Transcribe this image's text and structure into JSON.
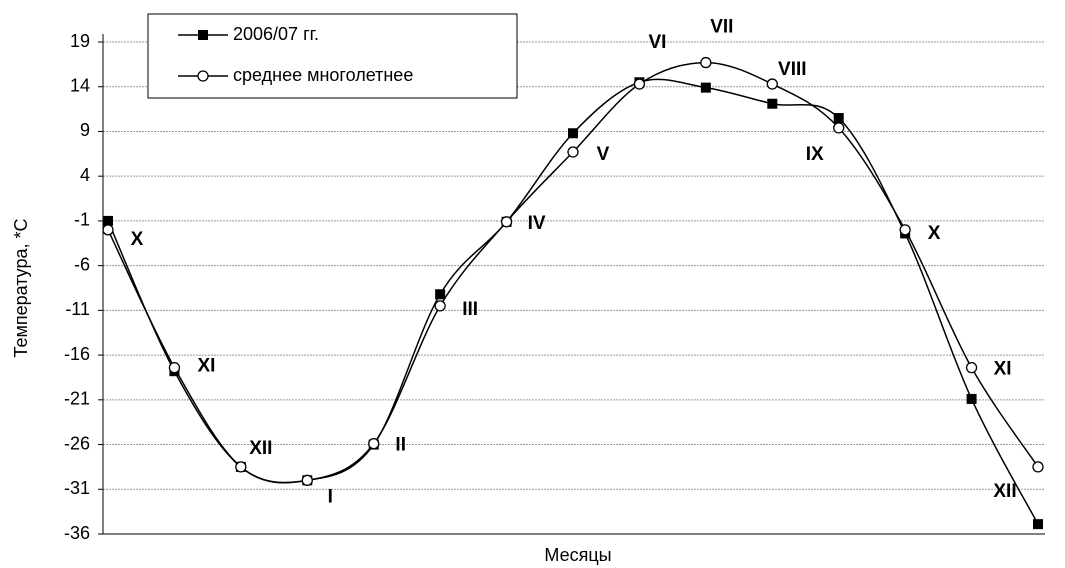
{
  "chart_data": {
    "type": "line",
    "y_label": "Температура, *С",
    "x_label": "Месяцы",
    "categories": [
      "X",
      "XI",
      "XII",
      "I",
      "II",
      "III",
      "IV",
      "V",
      "VI",
      "VII",
      "VIII",
      "IX",
      "X",
      "XI",
      "XII"
    ],
    "series": [
      {
        "name": "2006/07 гг.",
        "color": "#000000",
        "marker": "square",
        "values": [
          -1.0,
          -17.8,
          -28.5,
          -30.0,
          -26.0,
          -9.2,
          -1.1,
          8.8,
          14.5,
          13.9,
          12.1,
          10.5,
          -2.4,
          -20.9,
          -34.9
        ]
      },
      {
        "name": "среднее многолетнее",
        "color": "#000000",
        "marker": "circle",
        "values": [
          -2.0,
          -17.4,
          -28.5,
          -30.0,
          -25.9,
          -10.5,
          -1.1,
          6.7,
          14.3,
          16.7,
          14.3,
          9.4,
          -2.0,
          -17.4,
          -28.5
        ]
      }
    ],
    "ylim": [
      -36,
      19
    ],
    "yticks": [
      19,
      14,
      9,
      4,
      -1,
      -6,
      -11,
      -16,
      -21,
      -26,
      -31,
      -36
    ],
    "grid": true,
    "legend": "top-left"
  }
}
